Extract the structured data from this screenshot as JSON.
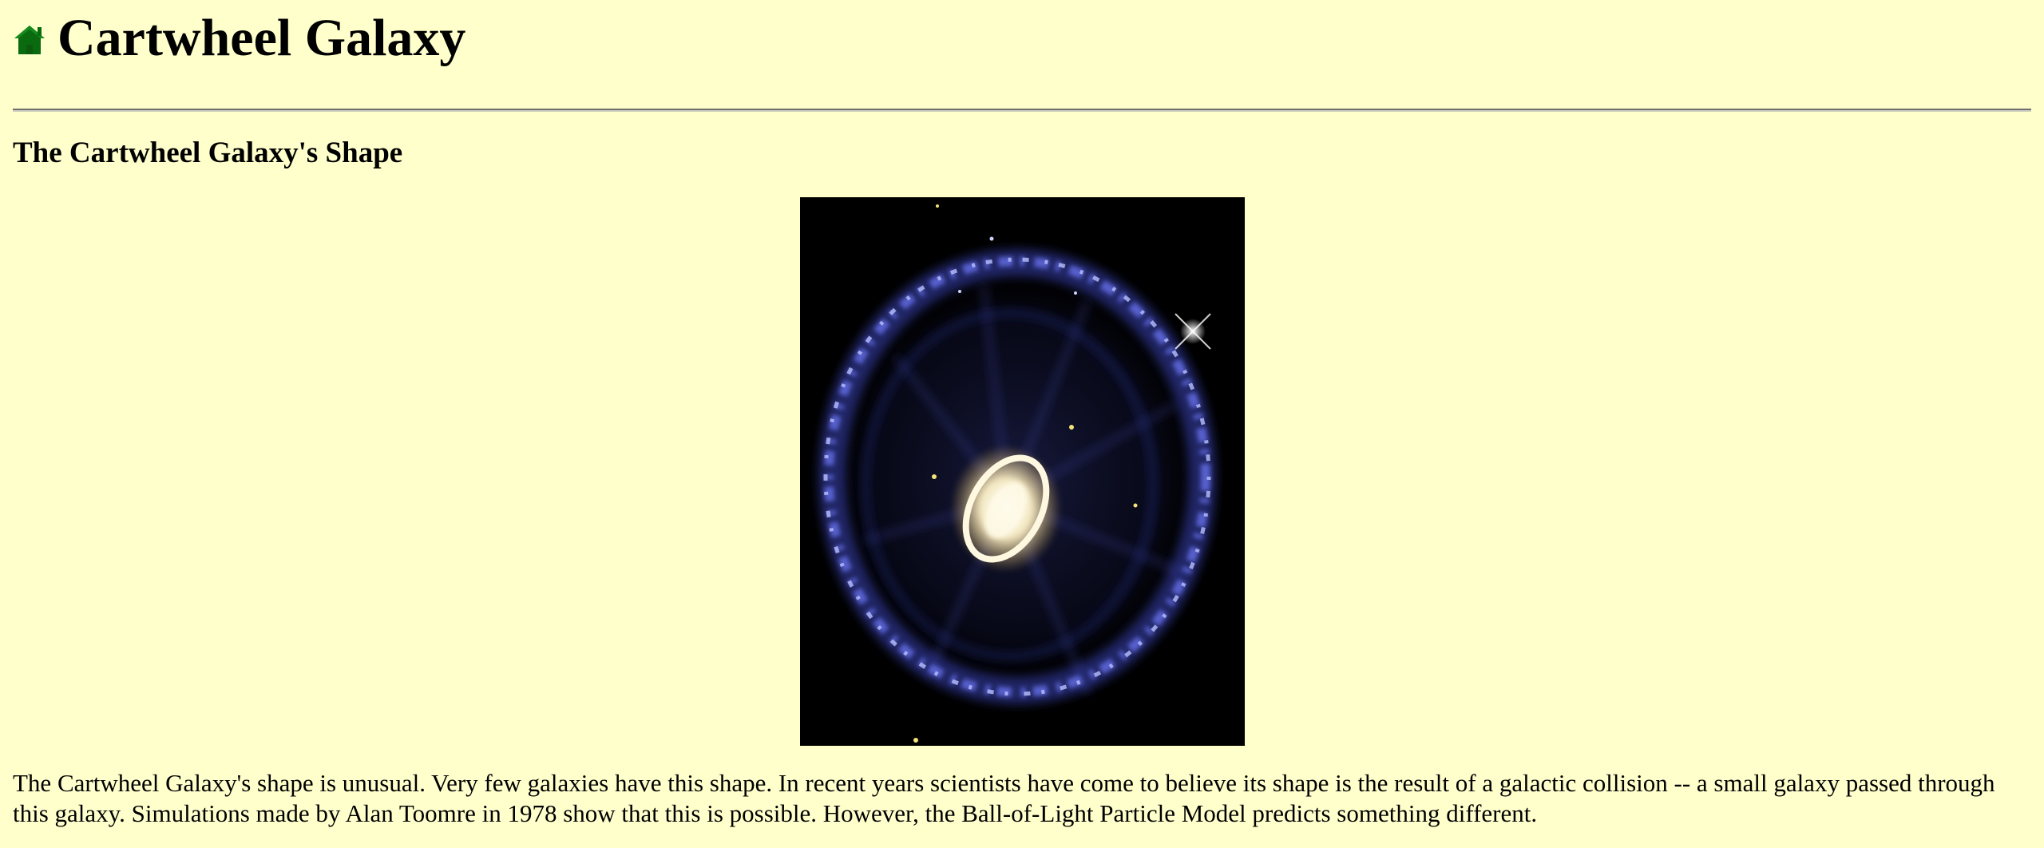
{
  "header": {
    "title": "Cartwheel Galaxy",
    "home_icon": "home-icon"
  },
  "section": {
    "heading": "The Cartwheel Galaxy's Shape"
  },
  "image": {
    "subject": "cartwheel-galaxy-photo"
  },
  "content": {
    "paragraph": "The Cartwheel Galaxy's shape is unusual. Very few galaxies have this shape. In recent years scientists have come to believe its shape is the result of a galactic collision -- a small galaxy passed through this galaxy. Simulations made by Alan Toomre in 1978 show that this is possible. However, the Ball-of-Light Particle Model predicts something different."
  },
  "colors": {
    "background": "#ffffcc",
    "home_icon": "#006600",
    "ring": "#5a63d8",
    "core": "#fff6d6"
  }
}
